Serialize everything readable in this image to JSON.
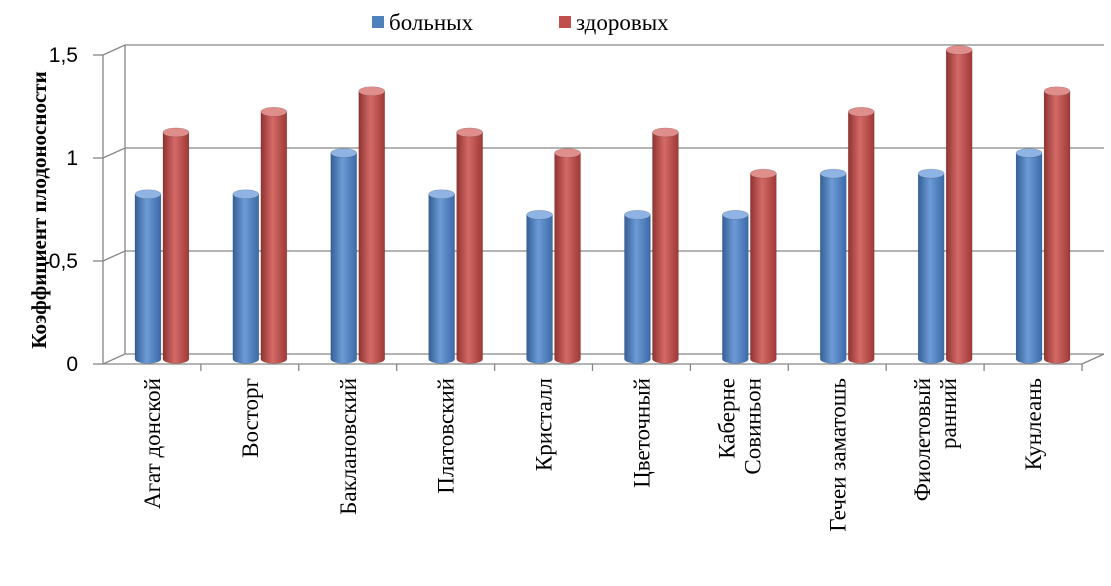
{
  "chart_data": {
    "type": "bar",
    "ylabel": "Коэффициент плодоносности",
    "xlabel": "",
    "ylim": [
      0,
      1.5
    ],
    "yticks": [
      "0",
      "0,5",
      "1",
      "1,5"
    ],
    "grid": true,
    "legend_position": "top",
    "categories": [
      [
        "Агат донской"
      ],
      [
        "Восторг"
      ],
      [
        "Баклановский"
      ],
      [
        "Платовский"
      ],
      [
        "Кристалл"
      ],
      [
        "Цветочный"
      ],
      [
        "Каберне",
        "Совиньон"
      ],
      [
        "Гечеи заматошь"
      ],
      [
        "Фиолетовый",
        "ранний"
      ],
      [
        "Кунлеань"
      ]
    ],
    "series": [
      {
        "name": "больных",
        "color": "#4f81bd",
        "values": [
          0.8,
          0.8,
          1.0,
          0.8,
          0.7,
          0.7,
          0.7,
          0.9,
          0.9,
          1.0
        ]
      },
      {
        "name": "здоровых",
        "color": "#c0504d",
        "values": [
          1.1,
          1.2,
          1.3,
          1.1,
          1.0,
          1.1,
          0.9,
          1.2,
          1.5,
          1.3
        ]
      }
    ]
  }
}
